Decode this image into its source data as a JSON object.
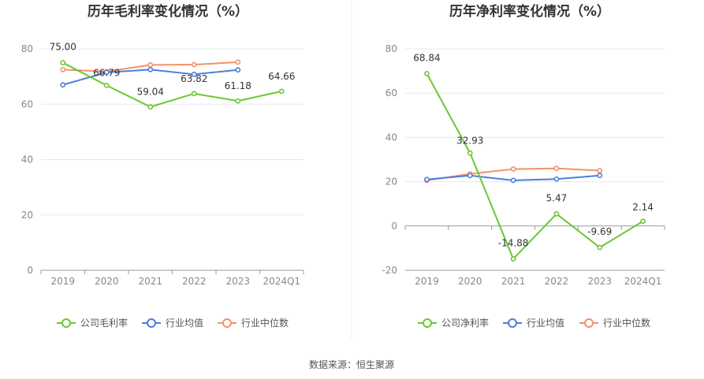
{
  "source_text": "数据来源：恒生聚源",
  "legend_labels": {
    "company_gross": "公司毛利率",
    "company_net": "公司净利率",
    "avg": "行业均值",
    "median": "行业中位数"
  },
  "colors": {
    "company": "#6ac832",
    "avg": "#4a7fe0",
    "median": "#f4916a",
    "grid": "#e6e8f0",
    "axis": "#999999"
  },
  "chart_data": [
    {
      "type": "line",
      "title": "历年毛利率变化情况（%）",
      "categories": [
        "2019",
        "2020",
        "2021",
        "2022",
        "2023",
        "2024Q1"
      ],
      "ylim": [
        0,
        80
      ],
      "yticks": [
        0,
        20,
        40,
        60,
        80
      ],
      "grid": true,
      "legend": "bottom",
      "series": [
        {
          "name": "公司毛利率",
          "key": "company",
          "values": [
            75.0,
            66.79,
            59.04,
            63.82,
            61.18,
            64.66
          ],
          "labels": [
            "75.00",
            "66.79",
            "59.04",
            "63.82",
            "61.18",
            "64.66"
          ]
        },
        {
          "name": "行业均值",
          "key": "avg",
          "values": [
            67.0,
            71.5,
            72.5,
            70.8,
            72.4,
            null
          ]
        },
        {
          "name": "行业中位数",
          "key": "median",
          "values": [
            72.5,
            71.8,
            74.2,
            74.3,
            75.2,
            null
          ]
        }
      ]
    },
    {
      "type": "line",
      "title": "历年净利率变化情况（%）",
      "categories": [
        "2019",
        "2020",
        "2021",
        "2022",
        "2023",
        "2024Q1"
      ],
      "ylim": [
        -20,
        80
      ],
      "yticks": [
        -20,
        0,
        20,
        40,
        60,
        80
      ],
      "grid": true,
      "legend": "bottom",
      "series": [
        {
          "name": "公司净利率",
          "key": "company",
          "values": [
            68.84,
            32.93,
            -14.88,
            5.47,
            -9.69,
            2.14
          ],
          "labels": [
            "68.84",
            "32.93",
            "-14.88",
            "5.47",
            "-9.69",
            "2.14"
          ]
        },
        {
          "name": "行业均值",
          "key": "avg",
          "values": [
            21.0,
            22.8,
            20.6,
            21.2,
            22.8,
            null
          ]
        },
        {
          "name": "行业中位数",
          "key": "median",
          "values": [
            20.6,
            23.5,
            25.7,
            26.0,
            25.0,
            null
          ]
        }
      ]
    }
  ]
}
